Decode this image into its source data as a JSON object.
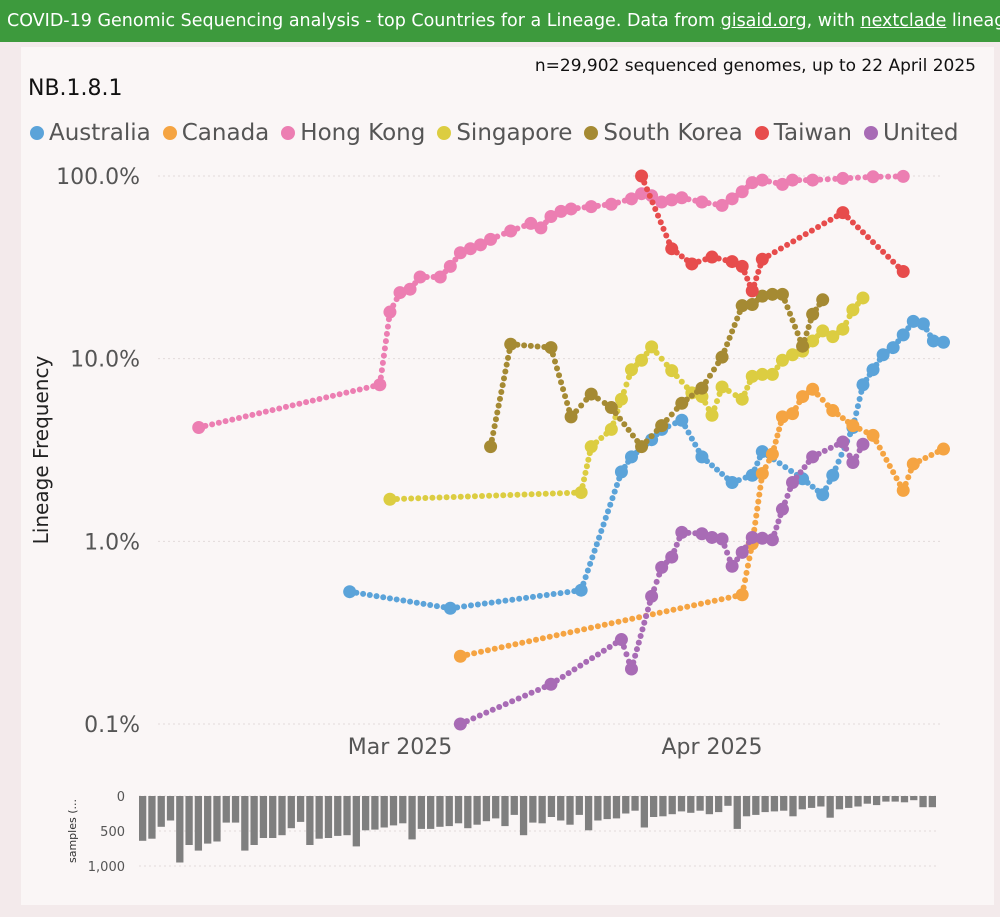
{
  "banner": {
    "pre": "COVID-19 Genomic Sequencing analysis - top Countries for a Lineage. Data from ",
    "link1": "gisaid.org",
    "mid": ", with ",
    "link2": "nextclade",
    "post": " lineages Sc"
  },
  "subtitle": "n=29,902 sequenced genomes, up to 22 April 2025",
  "lineage": "NB.1.8.1",
  "colors": {
    "Australia": "#5ba3d9",
    "Canada": "#f5a442",
    "Hong Kong": "#ec7eb2",
    "Singapore": "#dccd41",
    "South Korea": "#a58a33",
    "Taiwan": "#e74c4c",
    "United States": "#a86bb5"
  },
  "chart_data": {
    "type": "line",
    "ylabel": "Lineage Frequency",
    "yscale": "log",
    "ylim": [
      0.1,
      100
    ],
    "y_ticks": [
      "0.1%",
      "1.0%",
      "10.0%",
      "100.0%"
    ],
    "x_ticks": [
      "Mar 2025",
      "Apr 2025"
    ],
    "xlim": [
      "2025-02-09",
      "2025-04-22"
    ],
    "legend_position": "top",
    "legend_overflow_label": "United S...",
    "series": [
      {
        "name": "Australia",
        "points": [
          [
            "2025-02-24",
            0.53
          ],
          [
            "2025-03-06",
            0.43
          ],
          [
            "2025-03-19",
            0.54
          ],
          [
            "2025-03-23",
            2.4
          ],
          [
            "2025-03-24",
            2.9
          ],
          [
            "2025-03-26",
            3.6
          ],
          [
            "2025-03-27",
            4.1
          ],
          [
            "2025-03-29",
            4.6
          ],
          [
            "2025-03-31",
            2.9
          ],
          [
            "2025-04-03",
            2.1
          ],
          [
            "2025-04-05",
            2.3
          ],
          [
            "2025-04-06",
            3.1
          ],
          [
            "2025-04-10",
            2.2
          ],
          [
            "2025-04-12",
            1.8
          ],
          [
            "2025-04-13",
            2.3
          ],
          [
            "2025-04-15",
            4.2
          ],
          [
            "2025-04-16",
            7.2
          ],
          [
            "2025-04-17",
            8.7
          ],
          [
            "2025-04-18",
            10.5
          ],
          [
            "2025-04-19",
            11.5
          ],
          [
            "2025-04-20",
            13.5
          ],
          [
            "2025-04-21",
            16.0
          ],
          [
            "2025-04-22",
            15.5
          ],
          [
            "2025-04-23",
            12.5
          ],
          [
            "2025-04-24",
            12.3
          ]
        ]
      },
      {
        "name": "Canada",
        "points": [
          [
            "2025-03-07",
            0.235
          ],
          [
            "2025-04-04",
            0.51
          ],
          [
            "2025-04-05",
            0.97
          ],
          [
            "2025-04-06",
            2.35
          ],
          [
            "2025-04-07",
            3.0
          ],
          [
            "2025-04-08",
            4.8
          ],
          [
            "2025-04-09",
            5.0
          ],
          [
            "2025-04-10",
            6.2
          ],
          [
            "2025-04-11",
            6.8
          ],
          [
            "2025-04-13",
            5.2
          ],
          [
            "2025-04-15",
            4.3
          ],
          [
            "2025-04-17",
            3.8
          ],
          [
            "2025-04-20",
            1.9
          ],
          [
            "2025-04-21",
            2.65
          ],
          [
            "2025-04-24",
            3.2
          ]
        ]
      },
      {
        "name": "Hong Kong",
        "points": [
          [
            "2025-02-09",
            4.2
          ],
          [
            "2025-02-27",
            7.2
          ],
          [
            "2025-02-28",
            18.0
          ],
          [
            "2025-03-01",
            23.0
          ],
          [
            "2025-03-02",
            24.0
          ],
          [
            "2025-03-03",
            28.0
          ],
          [
            "2025-03-05",
            28.0
          ],
          [
            "2025-03-06",
            32.0
          ],
          [
            "2025-03-07",
            38.0
          ],
          [
            "2025-03-08",
            40.0
          ],
          [
            "2025-03-09",
            42.0
          ],
          [
            "2025-03-10",
            45.0
          ],
          [
            "2025-03-12",
            50.0
          ],
          [
            "2025-03-14",
            55.0
          ],
          [
            "2025-03-15",
            52.0
          ],
          [
            "2025-03-16",
            60.0
          ],
          [
            "2025-03-17",
            64.0
          ],
          [
            "2025-03-18",
            66.0
          ],
          [
            "2025-03-20",
            68.0
          ],
          [
            "2025-03-22",
            70.0
          ],
          [
            "2025-03-24",
            75.0
          ],
          [
            "2025-03-25",
            80.0
          ],
          [
            "2025-03-26",
            78.0
          ],
          [
            "2025-03-27",
            72.0
          ],
          [
            "2025-03-28",
            74.0
          ],
          [
            "2025-03-29",
            76.0
          ],
          [
            "2025-03-31",
            72.0
          ],
          [
            "2025-04-02",
            69.0
          ],
          [
            "2025-04-03",
            75.0
          ],
          [
            "2025-04-04",
            82.0
          ],
          [
            "2025-04-05",
            92.0
          ],
          [
            "2025-04-06",
            95.0
          ],
          [
            "2025-04-08",
            90.0
          ],
          [
            "2025-04-09",
            95.0
          ],
          [
            "2025-04-11",
            95.0
          ],
          [
            "2025-04-14",
            97.0
          ],
          [
            "2025-04-17",
            99.0
          ],
          [
            "2025-04-20",
            99.5
          ]
        ]
      },
      {
        "name": "Singapore",
        "points": [
          [
            "2025-02-28",
            1.7
          ],
          [
            "2025-03-19",
            1.85
          ],
          [
            "2025-03-20",
            3.3
          ],
          [
            "2025-03-22",
            4.1
          ],
          [
            "2025-03-23",
            6.0
          ],
          [
            "2025-03-24",
            8.7
          ],
          [
            "2025-03-25",
            9.8
          ],
          [
            "2025-03-26",
            11.6
          ],
          [
            "2025-03-28",
            8.6
          ],
          [
            "2025-03-30",
            6.5
          ],
          [
            "2025-03-31",
            6.2
          ],
          [
            "2025-04-01",
            4.9
          ],
          [
            "2025-04-02",
            7.0
          ],
          [
            "2025-04-04",
            6.0
          ],
          [
            "2025-04-05",
            8.0
          ],
          [
            "2025-04-06",
            8.2
          ],
          [
            "2025-04-07",
            8.2
          ],
          [
            "2025-04-08",
            9.8
          ],
          [
            "2025-04-09",
            10.5
          ],
          [
            "2025-04-10",
            11.0
          ],
          [
            "2025-04-11",
            12.5
          ],
          [
            "2025-04-12",
            14.2
          ],
          [
            "2025-04-13",
            13.2
          ],
          [
            "2025-04-14",
            14.5
          ],
          [
            "2025-04-15",
            18.5
          ],
          [
            "2025-04-16",
            21.5
          ]
        ]
      },
      {
        "name": "South Korea",
        "points": [
          [
            "2025-03-10",
            3.3
          ],
          [
            "2025-03-12",
            12.0
          ],
          [
            "2025-03-16",
            11.5
          ],
          [
            "2025-03-18",
            4.8
          ],
          [
            "2025-03-20",
            6.4
          ],
          [
            "2025-03-22",
            5.4
          ],
          [
            "2025-03-25",
            3.3
          ],
          [
            "2025-03-27",
            4.3
          ],
          [
            "2025-03-29",
            5.7
          ],
          [
            "2025-03-31",
            6.9
          ],
          [
            "2025-04-02",
            10.2
          ],
          [
            "2025-04-04",
            19.5
          ],
          [
            "2025-04-05",
            19.8
          ],
          [
            "2025-04-06",
            22.0
          ],
          [
            "2025-04-07",
            22.5
          ],
          [
            "2025-04-08",
            22.5
          ],
          [
            "2025-04-10",
            11.7
          ],
          [
            "2025-04-11",
            17.5
          ],
          [
            "2025-04-12",
            21.0
          ]
        ]
      },
      {
        "name": "Taiwan",
        "points": [
          [
            "2025-03-25",
            100.0
          ],
          [
            "2025-03-28",
            40.0
          ],
          [
            "2025-03-30",
            33.0
          ],
          [
            "2025-04-01",
            36.0
          ],
          [
            "2025-04-03",
            34.0
          ],
          [
            "2025-04-04",
            32.0
          ],
          [
            "2025-04-05",
            23.5
          ],
          [
            "2025-04-06",
            35.0
          ],
          [
            "2025-04-14",
            63.0
          ],
          [
            "2025-04-20",
            30.0
          ]
        ]
      },
      {
        "name": "United States",
        "points": [
          [
            "2025-03-07",
            0.1
          ],
          [
            "2025-03-16",
            0.165
          ],
          [
            "2025-03-23",
            0.29
          ],
          [
            "2025-03-24",
            0.2
          ],
          [
            "2025-03-26",
            0.5
          ],
          [
            "2025-03-27",
            0.72
          ],
          [
            "2025-03-28",
            0.82
          ],
          [
            "2025-03-29",
            1.12
          ],
          [
            "2025-03-31",
            1.1
          ],
          [
            "2025-04-01",
            1.05
          ],
          [
            "2025-04-02",
            1.03
          ],
          [
            "2025-04-03",
            0.73
          ],
          [
            "2025-04-04",
            0.87
          ],
          [
            "2025-04-05",
            1.05
          ],
          [
            "2025-04-06",
            1.04
          ],
          [
            "2025-04-07",
            1.02
          ],
          [
            "2025-04-08",
            1.5
          ],
          [
            "2025-04-09",
            2.1
          ],
          [
            "2025-04-11",
            2.9
          ],
          [
            "2025-04-14",
            3.5
          ],
          [
            "2025-04-15",
            2.7
          ],
          [
            "2025-04-16",
            3.4
          ]
        ]
      }
    ]
  },
  "samples_chart": {
    "ylabel": "samples (...",
    "y_ticks": [
      "0",
      "500",
      "1,000"
    ],
    "ylim": [
      0,
      1000
    ],
    "values": [
      640,
      610,
      440,
      350,
      950,
      700,
      780,
      680,
      650,
      380,
      380,
      780,
      700,
      600,
      600,
      560,
      460,
      370,
      700,
      610,
      600,
      570,
      560,
      720,
      490,
      480,
      450,
      420,
      390,
      620,
      470,
      470,
      440,
      430,
      390,
      460,
      410,
      360,
      320,
      430,
      270,
      560,
      380,
      390,
      300,
      350,
      410,
      270,
      490,
      350,
      330,
      320,
      250,
      210,
      450,
      300,
      290,
      260,
      220,
      240,
      210,
      260,
      230,
      140,
      470,
      290,
      270,
      230,
      220,
      210,
      290,
      190,
      170,
      150,
      310,
      190,
      170,
      150,
      110,
      130,
      80,
      80,
      90,
      60,
      160,
      160
    ]
  }
}
